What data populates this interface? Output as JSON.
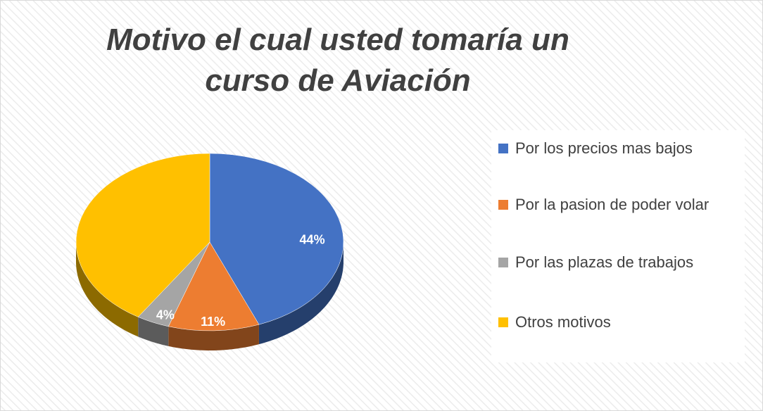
{
  "chart_data": {
    "type": "pie",
    "title": "Motivo el cual usted tomaría un curso de Aviación",
    "categories": [
      "Por los precios mas bajos",
      "Por la pasion de poder volar",
      "Por las plazas de trabajos",
      "Otros motivos"
    ],
    "values": [
      44,
      11,
      4,
      41
    ],
    "value_labels": [
      "44%",
      "11%",
      "4%",
      null
    ],
    "colors": [
      "#4472c4",
      "#ed7d31",
      "#a5a5a5",
      "#ffc000"
    ],
    "legend": "right"
  }
}
